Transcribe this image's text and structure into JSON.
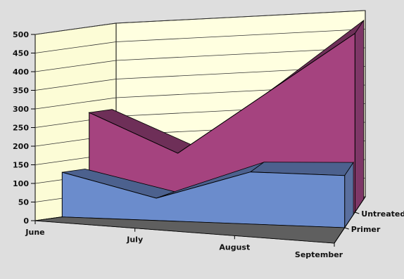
{
  "chart_data": {
    "type": "area",
    "subtype": "3d-stacked-depth",
    "title": "",
    "xlabel": "",
    "ylabel": "",
    "categories": [
      "June",
      "July",
      "August",
      "September"
    ],
    "ylim": [
      0,
      500
    ],
    "yticks": [
      0,
      50,
      100,
      150,
      200,
      250,
      300,
      350,
      400,
      450,
      500
    ],
    "grid": true,
    "legend": "none",
    "series": [
      {
        "name": "Untreated",
        "values": [
          270,
          160,
          320,
          480
        ],
        "color": "#a5437f"
      },
      {
        "name": "Primer",
        "values": [
          120,
          60,
          140,
          140
        ],
        "color": "#6b8ccc"
      }
    ],
    "depth_labels": [
      "Untreated",
      "Primer"
    ]
  }
}
